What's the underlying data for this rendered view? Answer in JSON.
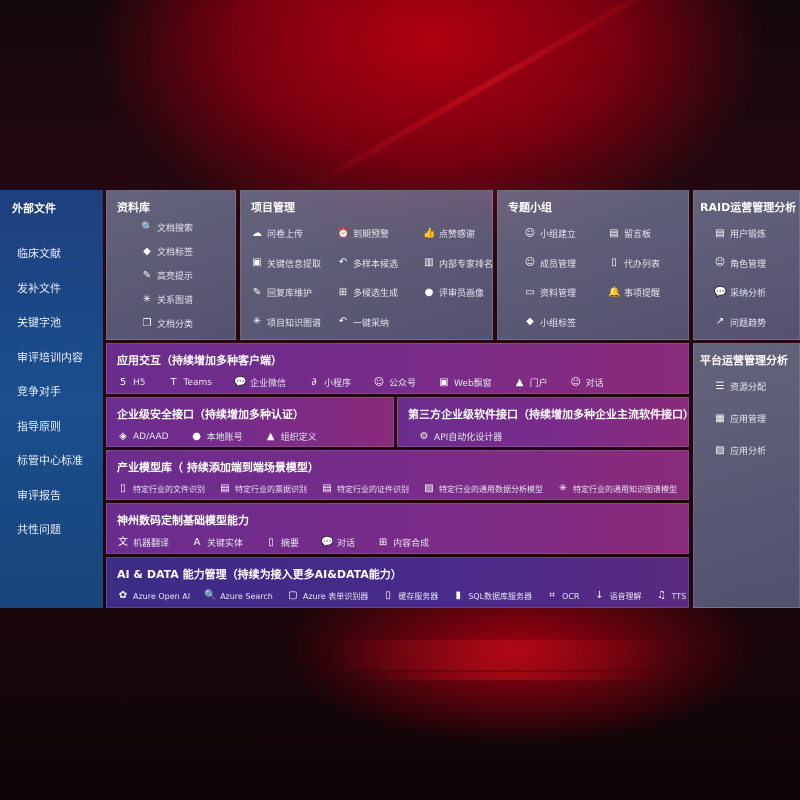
{
  "external_files": {
    "title": "外部文件",
    "items": [
      "临床文献",
      "发补文件",
      "关键字池",
      "审评培训内容",
      "竞争对手",
      "指导原则",
      "标管中心标准",
      "审评报告",
      "共性问题"
    ]
  },
  "library": {
    "title": "资料库",
    "items": [
      {
        "icon": "doc-search-icon",
        "label": "文档搜索"
      },
      {
        "icon": "tag-icon",
        "label": "文档标签"
      },
      {
        "icon": "pen-icon",
        "label": "高亮提示"
      },
      {
        "icon": "graph-icon",
        "label": "关系图谱"
      },
      {
        "icon": "doc-stack-icon",
        "label": "文档分类"
      }
    ]
  },
  "project": {
    "title": "项目管理",
    "items": [
      {
        "icon": "cloud-upload-icon",
        "label": "问卷上传"
      },
      {
        "icon": "alarm-icon",
        "label": "到期预警"
      },
      {
        "icon": "thumbs-up-icon",
        "label": "点赞感谢"
      },
      {
        "icon": "window-icon",
        "label": "关键信息提取"
      },
      {
        "icon": "reply-icon",
        "label": "多样本候选"
      },
      {
        "icon": "ranking-icon",
        "label": "内部专家排名"
      },
      {
        "icon": "edit-icon",
        "label": "回复库维护"
      },
      {
        "icon": "puzzle-icon",
        "label": "多候选生成"
      },
      {
        "icon": "user-icon",
        "label": "评审员画像"
      },
      {
        "icon": "graph-icon",
        "label": "项目知识图谱"
      },
      {
        "icon": "reply-icon",
        "label": "一键采纳"
      }
    ]
  },
  "group": {
    "title": "专题小组",
    "items": [
      {
        "icon": "users-icon",
        "label": "小组建立"
      },
      {
        "icon": "bbs-icon",
        "label": "留言板"
      },
      {
        "icon": "user-add-icon",
        "label": "成员管理"
      },
      {
        "icon": "clipboard-icon",
        "label": "代办列表"
      },
      {
        "icon": "folder-icon",
        "label": "资料管理"
      },
      {
        "icon": "bell-icon",
        "label": "事项提醒"
      },
      {
        "icon": "tag-icon",
        "label": "小组标签"
      }
    ]
  },
  "raid": {
    "title": "RAID运营管理分析",
    "items": [
      {
        "icon": "id-card-icon",
        "label": "用户锻炼"
      },
      {
        "icon": "users-icon",
        "label": "角色管理"
      },
      {
        "icon": "qa-icon",
        "label": "采纳分析"
      },
      {
        "icon": "trend-icon",
        "label": "问题趋势"
      }
    ]
  },
  "platform": {
    "title": "平台运营管理分析",
    "items": [
      {
        "icon": "list-icon",
        "label": "资源分配"
      },
      {
        "icon": "apps-icon",
        "label": "应用管理"
      },
      {
        "icon": "chart-icon",
        "label": "应用分析"
      }
    ]
  },
  "app_interaction": {
    "title": "应用交互（持续增加多种客户端）",
    "items": [
      {
        "icon": "html5-icon",
        "label": "H5"
      },
      {
        "icon": "teams-icon",
        "label": "Teams"
      },
      {
        "icon": "wechat-icon",
        "label": "企业微信"
      },
      {
        "icon": "miniprogram-icon",
        "label": "小程序"
      },
      {
        "icon": "users-icon",
        "label": "公众号"
      },
      {
        "icon": "window-icon",
        "label": "Web飘窗"
      },
      {
        "icon": "portal-icon",
        "label": "门户"
      },
      {
        "icon": "chat-users-icon",
        "label": "对话"
      }
    ]
  },
  "security": {
    "title": "企业级安全接口（持续增加多种认证）",
    "items": [
      {
        "icon": "ad-icon",
        "label": "AD/AAD"
      },
      {
        "icon": "user-icon",
        "label": "本地账号"
      },
      {
        "icon": "org-icon",
        "label": "组织定义"
      }
    ]
  },
  "third_party": {
    "title": "第三方企业级软件接口（持续增加多种企业主流软件接口）",
    "items": [
      {
        "icon": "gear-icon",
        "label": "API自动化设计器"
      }
    ]
  },
  "industry": {
    "title": "产业模型库（ 持续添加端到端场景模型）",
    "items": [
      {
        "icon": "file-icon",
        "label": "特定行业的文件识别"
      },
      {
        "icon": "receipt-icon",
        "label": "特定行业的票据识别"
      },
      {
        "icon": "id-card-icon",
        "label": "特定行业的证件识别"
      },
      {
        "icon": "chart-icon",
        "label": "特定行业的通用数据分析模型"
      },
      {
        "icon": "graph-icon",
        "label": "特定行业的通用知识图谱模型"
      }
    ]
  },
  "base_model": {
    "title": "神州数码定制基础模型能力",
    "items": [
      {
        "icon": "translate-icon",
        "label": "机器翻译"
      },
      {
        "icon": "entity-icon",
        "label": "关键实体"
      },
      {
        "icon": "doc-icon",
        "label": "摘要"
      },
      {
        "icon": "chat-icon",
        "label": "对话"
      },
      {
        "icon": "puzzle-icon",
        "label": "内容合成"
      }
    ]
  },
  "ai_data": {
    "title": "AI & DATA 能力管理（持续为接入更多AI&DATA能力）",
    "items": [
      {
        "icon": "openai-icon",
        "label": "Azure Open AI"
      },
      {
        "icon": "search-doc-icon",
        "label": "Azure Search"
      },
      {
        "icon": "form-icon",
        "label": "Azure 表单识别器"
      },
      {
        "icon": "cache-icon",
        "label": "缓存服务器"
      },
      {
        "icon": "database-icon",
        "label": "SQL数据库服务器"
      },
      {
        "icon": "ocr-icon",
        "label": "OCR"
      },
      {
        "icon": "speech-icon",
        "label": "语音理解"
      },
      {
        "icon": "tts-icon",
        "label": "TTS"
      }
    ]
  }
}
